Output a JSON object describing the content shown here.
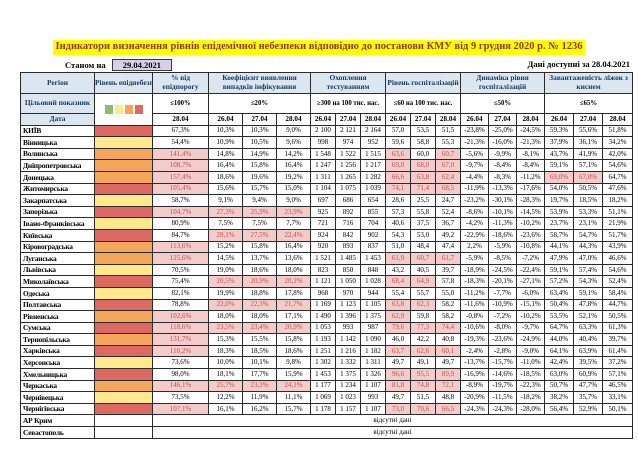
{
  "title": "Індикатори визначення рівнів епідемічної небезпеки відповідно до постанови КМУ від 9 грудня 2020 р. № 1236",
  "as_of_label": "Станом на",
  "as_of_date": "29.04.2021",
  "data_available_label": "Дані доступні за",
  "data_available_date": "28.04.2021",
  "table": {
    "region_header": "Регіон",
    "level_header": "Рівень епіднебезпеки",
    "target_label": "Цільовий показник",
    "date_label": "Дата",
    "no_data_text": "відсутні дані",
    "legend_colors": [
      "#8DBE6E",
      "#FFE98C",
      "#F4A65A",
      "#DD6A62"
    ],
    "legend_names": [
      "green",
      "yellow",
      "orange",
      "red"
    ],
    "level_colors": {
      "red": "#DD6A62",
      "orange": "#F4A65A",
      "yellow": "#FFE98C",
      "none": "#FFFFFF"
    },
    "flag_bg": "#F3CBCA",
    "flag_text": "#C0504D",
    "groups": [
      {
        "label": "% від епідпорогу",
        "target": "≤100%",
        "dates": [
          "28.04"
        ]
      },
      {
        "label": "Коефіцієнт виявлення випадків інфікування",
        "target": "≤20%",
        "dates": [
          "26.04",
          "27.04",
          "28.04"
        ]
      },
      {
        "label": "Охоплення тестуванням",
        "target": "≥300 на 100 тис. нас.",
        "dates": [
          "26.04",
          "27.04",
          "28.04"
        ]
      },
      {
        "label": "Рівень госпіталізацій",
        "target": "≤60 на 100 тис. нас.",
        "dates": [
          "26.04",
          "27.04",
          "28.04"
        ]
      },
      {
        "label": "Динаміка рівня госпіталізацій",
        "target": "≤50%",
        "dates": [
          "26.04",
          "27.04",
          "28.04"
        ]
      },
      {
        "label": "Завантаженість ліжок з киснем",
        "target": "≤65%",
        "dates": [
          "26.04",
          "27.04",
          "28.04"
        ]
      }
    ],
    "rows": [
      {
        "name": "КИЇВ",
        "level": "red",
        "vals": [
          "67,3%",
          "10,3%",
          "10,3%",
          "9,0%",
          "2 100",
          "2 121",
          "2 164",
          "57,0",
          "53,5",
          "51,5",
          "-23,8%",
          "-25,0%",
          "-24,5%",
          "59,3%",
          "55,6%",
          "51,8%"
        ],
        "flags": []
      },
      {
        "name": "Вінницька",
        "level": "yellow",
        "vals": [
          "54,4%",
          "10,9%",
          "10,5%",
          "9,6%",
          "998",
          "974",
          "952",
          "59,6",
          "58,8",
          "55,3",
          "-21,3%",
          "-16,0%",
          "-21,3%",
          "37,9%",
          "36,1%",
          "34,2%"
        ],
        "flags": []
      },
      {
        "name": "Волинська",
        "level": "orange",
        "vals": [
          "141,4%",
          "14,8%",
          "14,9%",
          "14,2%",
          "1 548",
          "1 522",
          "1 515",
          "63,6",
          "60,0",
          "60,7",
          "-5,6%",
          "-9,9%",
          "-8,1%",
          "43,7%",
          "41,9%",
          "42,0%"
        ],
        "flags": [
          0,
          7,
          9
        ]
      },
      {
        "name": "Дніпропетровська",
        "level": "orange",
        "vals": [
          "108,7%",
          "16,4%",
          "15,8%",
          "16,4%",
          "1 247",
          "1 256",
          "1 217",
          "69,0",
          "68,0",
          "67,0",
          "-9,7%",
          "-8,4%",
          "-8,4%",
          "59,1%",
          "57,1%",
          "54,6%"
        ],
        "flags": [
          0,
          7,
          8,
          9
        ]
      },
      {
        "name": "Донецька",
        "level": "orange",
        "vals": [
          "157,4%",
          "18,6%",
          "19,6%",
          "19,2%",
          "1 311",
          "1 265",
          "1 282",
          "66,6",
          "63,8",
          "62,4",
          "-4,4%",
          "-8,3%",
          "-11,2%",
          "69,0%",
          "67,0%",
          "64,7%"
        ],
        "flags": [
          0,
          7,
          8,
          9,
          13,
          14
        ]
      },
      {
        "name": "Житомирська",
        "level": "red",
        "vals": [
          "105,4%",
          "15,6%",
          "15,7%",
          "15,0%",
          "1 104",
          "1 075",
          "1 039",
          "74,1",
          "71,4",
          "68,5",
          "-11,9%",
          "-13,3%",
          "-17,6%",
          "54,0%",
          "50,5%",
          "47,6%"
        ],
        "flags": [
          0,
          7,
          8,
          9
        ]
      },
      {
        "name": "Закарпатська",
        "level": "yellow",
        "vals": [
          "58,7%",
          "9,1%",
          "9,4%",
          "9,0%",
          "697",
          "686",
          "654",
          "28,6",
          "25,5",
          "24,7",
          "-23,2%",
          "-30,1%",
          "-28,3%",
          "19,7%",
          "18,5%",
          "18,2%"
        ],
        "flags": []
      },
      {
        "name": "Запорізька",
        "level": "red",
        "vals": [
          "104,7%",
          "27,3%",
          "25,9%",
          "23,9%",
          "925",
          "892",
          "855",
          "57,3",
          "55,8",
          "52,4",
          "-8,6%",
          "-10,1%",
          "-14,5%",
          "53,9%",
          "53,3%",
          "51,1%"
        ],
        "flags": [
          0,
          1,
          2,
          3
        ]
      },
      {
        "name": "Івано-Франківська",
        "level": "yellow",
        "vals": [
          "80,9%",
          "7,5%",
          "7,5%",
          "7,7%",
          "721",
          "716",
          "704",
          "40,6",
          "37,5",
          "36,7",
          "-4,2%",
          "-11,3%",
          "-10,2%",
          "23,7%",
          "23,1%",
          "21,9%"
        ],
        "flags": []
      },
      {
        "name": "Київська",
        "level": "red",
        "vals": [
          "84,7%",
          "28,1%",
          "27,5%",
          "22,4%",
          "924",
          "842",
          "902",
          "54,3",
          "53,0",
          "49,2",
          "-22,9%",
          "-18,6%",
          "-23,6%",
          "58,7%",
          "54,7%",
          "51,7%"
        ],
        "flags": [
          1,
          2,
          3
        ]
      },
      {
        "name": "Кіровоградська",
        "level": "orange",
        "vals": [
          "113,6%",
          "15,2%",
          "15,8%",
          "16,4%",
          "920",
          "893",
          "837",
          "51,0",
          "48,4",
          "47,4",
          "2,2%",
          "-5,9%",
          "-10,8%",
          "44,1%",
          "44,3%",
          "43,9%"
        ],
        "flags": [
          0
        ]
      },
      {
        "name": "Луганська",
        "level": "orange",
        "vals": [
          "125,6%",
          "14,5%",
          "13,7%",
          "13,6%",
          "1 521",
          "1 485",
          "1 453",
          "61,9",
          "60,7",
          "61,7",
          "-5,9%",
          "-8,5%",
          "-7,2%",
          "47,9%",
          "47,0%",
          "46,6%"
        ],
        "flags": [
          0,
          7,
          8,
          9
        ]
      },
      {
        "name": "Львівська",
        "level": "yellow",
        "vals": [
          "70,5%",
          "19,0%",
          "18,6%",
          "18,0%",
          "823",
          "850",
          "848",
          "43,2",
          "40,5",
          "39,7",
          "-18,9%",
          "-24,5%",
          "-22,4%",
          "59,1%",
          "57,4%",
          "54,6%"
        ],
        "flags": []
      },
      {
        "name": "Миколаївська",
        "level": "red",
        "vals": [
          "75,4%",
          "20,5%",
          "20,9%",
          "20,2%",
          "1 121",
          "1 050",
          "1 028",
          "68,4",
          "64,9",
          "57,8",
          "-18,3%",
          "-20,1%",
          "-27,1%",
          "57,2%",
          "54,3%",
          "52,4%"
        ],
        "flags": [
          1,
          2,
          3,
          7,
          8
        ]
      },
      {
        "name": "Одеська",
        "level": "yellow",
        "vals": [
          "82,1%",
          "19,9%",
          "18,8%",
          "17,8%",
          "968",
          "970",
          "944",
          "55,4",
          "55,7",
          "55,0",
          "-11,2%",
          "-7,7%",
          "-6,0%",
          "63,4%",
          "59,1%",
          "58,4%"
        ],
        "flags": []
      },
      {
        "name": "Полтавська",
        "level": "red",
        "vals": [
          "78,8%",
          "22,0%",
          "22,3%",
          "21,7%",
          "1 169",
          "1 123",
          "1 105",
          "63,8",
          "62,3",
          "58,2",
          "-11,6%",
          "-10,9%",
          "-15,1%",
          "50,4%",
          "47,8%",
          "44,7%"
        ],
        "flags": [
          1,
          2,
          3,
          7,
          8
        ]
      },
      {
        "name": "Рівненська",
        "level": "orange",
        "vals": [
          "102,6%",
          "18,0%",
          "18,0%",
          "17,1%",
          "1 490",
          "1 396",
          "1 375",
          "62,9",
          "59,8",
          "58,2",
          "-0,8%",
          "-7,2%",
          "-10,2%",
          "53,5%",
          "52,1%",
          "50,5%"
        ],
        "flags": [
          0,
          7
        ]
      },
      {
        "name": "Сумська",
        "level": "red",
        "vals": [
          "118,6%",
          "23,5%",
          "23,4%",
          "20,9%",
          "1 053",
          "993",
          "987",
          "79,6",
          "77,3",
          "74,4",
          "-10,6%",
          "-8,0%",
          "-9,7%",
          "64,7%",
          "63,3%",
          "61,3%"
        ],
        "flags": [
          0,
          1,
          2,
          3,
          7,
          8,
          9
        ]
      },
      {
        "name": "Тернопільська",
        "level": "orange",
        "vals": [
          "131,7%",
          "15,3%",
          "15,5%",
          "15,8%",
          "1 193",
          "1 142",
          "1 090",
          "46,0",
          "42,2",
          "40,8",
          "-19,3%",
          "-23,6%",
          "-24,9%",
          "44,0%",
          "40,4%",
          "39,7%"
        ],
        "flags": [
          0
        ]
      },
      {
        "name": "Харківська",
        "level": "red",
        "vals": [
          "110,2%",
          "18,3%",
          "18,5%",
          "18,6%",
          "1 251",
          "1 216",
          "1 182",
          "63,7",
          "62,6",
          "60,1",
          "-2,4%",
          "-2,8%",
          "-9,0%",
          "64,1%",
          "63,9%",
          "61,4%"
        ],
        "flags": [
          0,
          7,
          8,
          9
        ]
      },
      {
        "name": "Херсонська",
        "level": "yellow",
        "vals": [
          "73,6%",
          "10,0%",
          "10,1%",
          "9,8%",
          "1 302",
          "1 332",
          "1 311",
          "49,7",
          "49,1",
          "49,7",
          "-13,7%",
          "-15,7%",
          "-11,0%",
          "42,4%",
          "39,5%",
          "37,2%"
        ],
        "flags": []
      },
      {
        "name": "Хмельницька",
        "level": "red",
        "vals": [
          "98,0%",
          "18,1%",
          "17,7%",
          "15,9%",
          "1 453",
          "1 375",
          "1 326",
          "96,6",
          "95,5",
          "89,9",
          "-16,9%",
          "-14,6%",
          "-18,5%",
          "63,0%",
          "60,9%",
          "57,1%"
        ],
        "flags": [
          7,
          8,
          9
        ]
      },
      {
        "name": "Черкаська",
        "level": "orange",
        "vals": [
          "146,1%",
          "25,7%",
          "23,3%",
          "24,1%",
          "1 177",
          "1 234",
          "1 107",
          "81,8",
          "74,8",
          "72,1",
          "-8,9%",
          "-19,7%",
          "-22,3%",
          "50,7%",
          "47,7%",
          "46,5%"
        ],
        "flags": [
          0,
          1,
          2,
          3,
          7,
          8,
          9
        ]
      },
      {
        "name": "Чернівецька",
        "level": "yellow",
        "vals": [
          "73,5%",
          "12,2%",
          "11,9%",
          "11,1%",
          "1 069",
          "1 023",
          "993",
          "49,7",
          "51,5",
          "48,8",
          "-20,9%",
          "-11,5%",
          "-18,2%",
          "38,2%",
          "35,7%",
          "33,1%"
        ],
        "flags": []
      },
      {
        "name": "Чернігівська",
        "level": "red",
        "vals": [
          "107,1%",
          "16,1%",
          "16,2%",
          "15,7%",
          "1 178",
          "1 157",
          "1 107",
          "73,0",
          "70,6",
          "66,5",
          "-24,3%",
          "-24,3%",
          "-28,0%",
          "56,4%",
          "52,9%",
          "50,1%"
        ],
        "flags": [
          0,
          7,
          8,
          9
        ]
      },
      {
        "name": "АР Крим",
        "level": "none",
        "nodata": true
      },
      {
        "name": "Севастополь",
        "level": "none",
        "nodata": true
      }
    ]
  }
}
